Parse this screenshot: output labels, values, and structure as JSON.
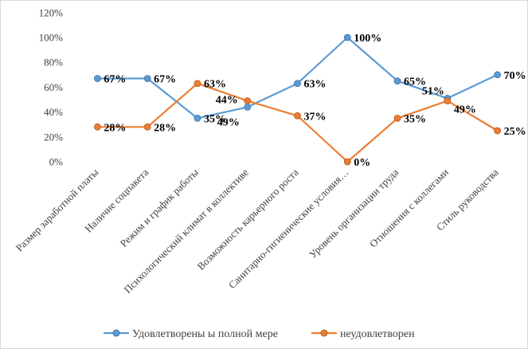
{
  "chart_data": {
    "type": "line",
    "categories": [
      "Размер заработной платы",
      "Наличие соцпакета",
      "Режим и график работы",
      "Психологический климат в коллективе",
      "Возможность карьерного роста",
      "Санитарно-гигиенические условия…",
      "Уровень организации труда",
      "Отношения с коллегами",
      "Стиль руководства"
    ],
    "series": [
      {
        "name": "Удовлетворены ы полной мере",
        "values": [
          67,
          67,
          35,
          44,
          63,
          100,
          65,
          51,
          70
        ],
        "labels": [
          "67%",
          "67%",
          "35%",
          "44%",
          "63%",
          "100%",
          "65%",
          "51%",
          "70%"
        ],
        "color": "#5b9bd5"
      },
      {
        "name": "неудовлетворен",
        "values": [
          28,
          28,
          63,
          49,
          37,
          0,
          35,
          49,
          25
        ],
        "labels": [
          "28%",
          "28%",
          "63%",
          "49%",
          "37%",
          "0%",
          "35%",
          "49%",
          "25%"
        ],
        "color": "#ed7d31"
      }
    ],
    "yticks": [
      "0%",
      "20%",
      "40%",
      "60%",
      "80%",
      "100%",
      "120%"
    ],
    "ylim": [
      0,
      120
    ],
    "grid": false,
    "legend": "bottom"
  }
}
